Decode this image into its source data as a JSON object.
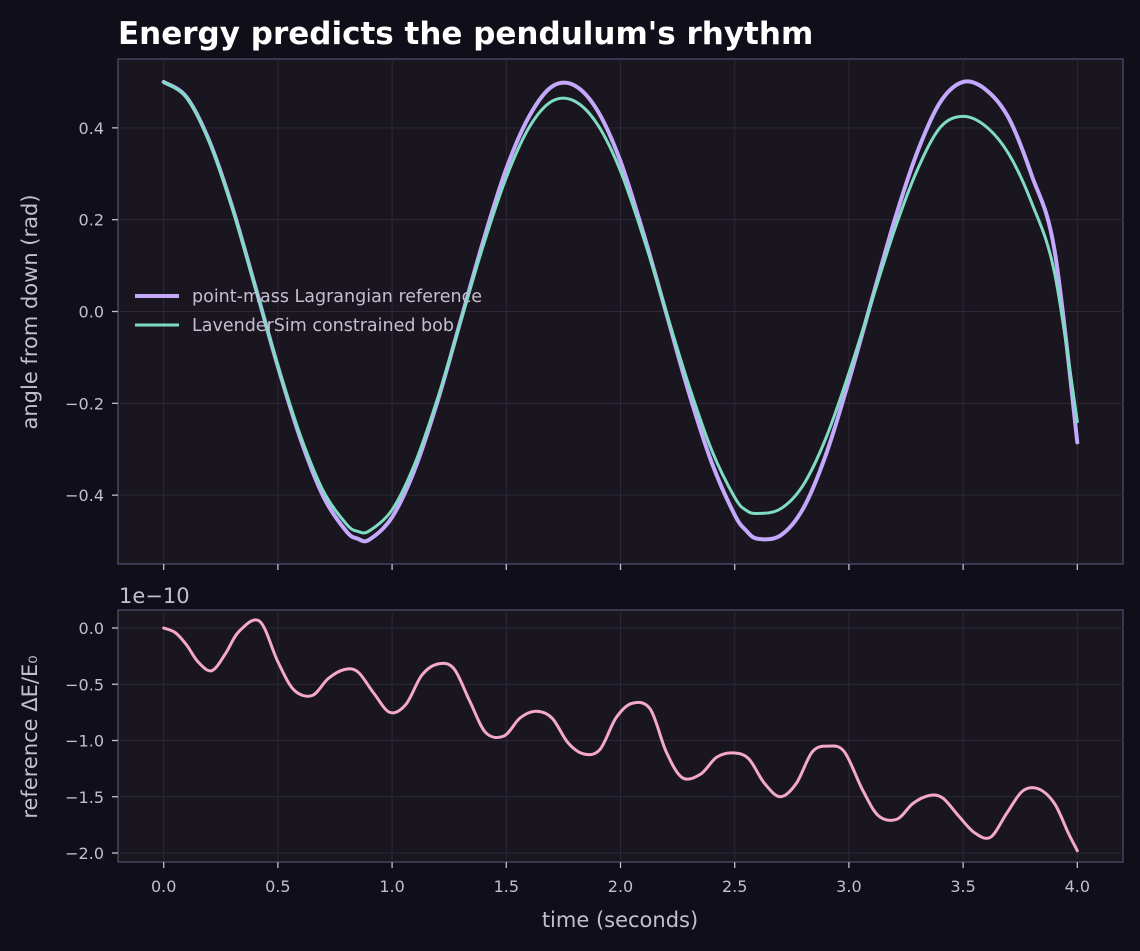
{
  "colors": {
    "background": "#100e19",
    "panel": "#19161f",
    "reference": "#c4a8fb",
    "sim": "#80dbc4",
    "energy": "#f3a8cc"
  },
  "chart_data": [
    {
      "type": "line",
      "title": "Energy predicts the pendulum's rhythm",
      "xlabel": "",
      "ylabel": "angle from down (rad)",
      "xlim": [
        -0.2,
        4.2
      ],
      "ylim": [
        -0.55,
        0.55
      ],
      "xticks": [
        0.0,
        0.5,
        1.0,
        1.5,
        2.0,
        2.5,
        3.0,
        3.5,
        4.0
      ],
      "yticks": [
        0.4,
        0.2,
        0.0,
        -0.2,
        -0.4
      ],
      "ytick_labels": [
        "0.4",
        "0.2",
        "0.0",
        "−0.2",
        "−0.4"
      ],
      "grid": true,
      "legend_position": "center-left",
      "series": [
        {
          "name": "point-mass Lagrangian reference",
          "color": "#c4a8fb",
          "x": [
            0.0,
            0.1,
            0.2,
            0.3,
            0.4,
            0.5,
            0.6,
            0.7,
            0.8,
            0.85,
            0.9,
            1.0,
            1.1,
            1.2,
            1.3,
            1.4,
            1.5,
            1.6,
            1.7,
            1.8,
            1.9,
            2.0,
            2.1,
            2.2,
            2.3,
            2.4,
            2.5,
            2.55,
            2.6,
            2.7,
            2.8,
            2.9,
            3.0,
            3.1,
            3.2,
            3.3,
            3.4,
            3.5,
            3.6,
            3.7,
            3.8,
            3.9,
            4.0
          ],
          "y": [
            0.5,
            0.467,
            0.371,
            0.228,
            0.056,
            -0.12,
            -0.279,
            -0.404,
            -0.479,
            -0.495,
            -0.497,
            -0.448,
            -0.343,
            -0.194,
            -0.02,
            0.155,
            0.311,
            0.425,
            0.49,
            0.492,
            0.437,
            0.327,
            0.171,
            -0.003,
            -0.178,
            -0.33,
            -0.443,
            -0.477,
            -0.495,
            -0.488,
            -0.429,
            -0.311,
            -0.151,
            0.025,
            0.199,
            0.348,
            0.456,
            0.5,
            0.483,
            0.421,
            0.297,
            0.134,
            -0.285
          ]
        },
        {
          "name": "LavenderSim constrained bob",
          "color": "#80dbc4",
          "x": [
            0.0,
            0.1,
            0.2,
            0.3,
            0.4,
            0.5,
            0.6,
            0.7,
            0.8,
            0.85,
            0.9,
            1.0,
            1.1,
            1.2,
            1.3,
            1.4,
            1.5,
            1.6,
            1.7,
            1.8,
            1.9,
            2.0,
            2.1,
            2.2,
            2.3,
            2.4,
            2.5,
            2.55,
            2.6,
            2.7,
            2.8,
            2.9,
            3.0,
            3.1,
            3.2,
            3.3,
            3.4,
            3.5,
            3.6,
            3.7,
            3.8,
            3.9,
            4.0
          ],
          "y": [
            0.5,
            0.466,
            0.369,
            0.225,
            0.055,
            -0.118,
            -0.272,
            -0.392,
            -0.463,
            -0.479,
            -0.478,
            -0.432,
            -0.331,
            -0.188,
            -0.022,
            0.145,
            0.292,
            0.401,
            0.458,
            0.458,
            0.407,
            0.306,
            0.162,
            -0.001,
            -0.162,
            -0.303,
            -0.405,
            -0.433,
            -0.44,
            -0.43,
            -0.378,
            -0.275,
            -0.134,
            0.022,
            0.178,
            0.309,
            0.401,
            0.425,
            0.403,
            0.343,
            0.237,
            0.085,
            -0.24
          ]
        }
      ]
    },
    {
      "type": "line",
      "title": "",
      "offset_label": "1e−10",
      "xlabel": "time (seconds)",
      "ylabel": "reference ΔE/E₀",
      "xlim": [
        -0.2,
        4.2
      ],
      "ylim": [
        -2.08,
        0.16
      ],
      "xticks": [
        0.0,
        0.5,
        1.0,
        1.5,
        2.0,
        2.5,
        3.0,
        3.5,
        4.0
      ],
      "xtick_labels": [
        "0.0",
        "0.5",
        "1.0",
        "1.5",
        "2.0",
        "2.5",
        "3.0",
        "3.5",
        "4.0"
      ],
      "yticks": [
        0.0,
        -0.5,
        -1.0,
        -1.5,
        -2.0
      ],
      "ytick_labels": [
        "0.0",
        "−0.5",
        "−1.0",
        "−1.5",
        "−2.0"
      ],
      "grid": true,
      "series": [
        {
          "color": "#f3a8cc",
          "x": [
            0.0,
            0.05,
            0.1,
            0.15,
            0.21,
            0.27,
            0.33,
            0.42,
            0.5,
            0.57,
            0.65,
            0.72,
            0.79,
            0.85,
            0.92,
            0.99,
            1.06,
            1.13,
            1.2,
            1.27,
            1.34,
            1.41,
            1.49,
            1.56,
            1.63,
            1.7,
            1.77,
            1.84,
            1.91,
            1.98,
            2.05,
            2.13,
            2.2,
            2.27,
            2.35,
            2.42,
            2.49,
            2.56,
            2.63,
            2.7,
            2.77,
            2.84,
            2.91,
            2.98,
            3.06,
            3.13,
            3.21,
            3.28,
            3.35,
            3.41,
            3.48,
            3.55,
            3.62,
            3.69,
            3.76,
            3.83,
            3.9,
            3.96,
            4.0
          ],
          "y": [
            0.0,
            -0.04,
            -0.15,
            -0.3,
            -0.38,
            -0.23,
            -0.03,
            0.06,
            -0.3,
            -0.55,
            -0.6,
            -0.45,
            -0.37,
            -0.39,
            -0.58,
            -0.75,
            -0.68,
            -0.42,
            -0.32,
            -0.36,
            -0.65,
            -0.93,
            -0.96,
            -0.8,
            -0.74,
            -0.8,
            -1.02,
            -1.12,
            -1.08,
            -0.8,
            -0.67,
            -0.72,
            -1.1,
            -1.33,
            -1.3,
            -1.15,
            -1.11,
            -1.16,
            -1.38,
            -1.5,
            -1.38,
            -1.1,
            -1.05,
            -1.1,
            -1.44,
            -1.67,
            -1.7,
            -1.56,
            -1.49,
            -1.51,
            -1.67,
            -1.82,
            -1.86,
            -1.65,
            -1.45,
            -1.43,
            -1.56,
            -1.82,
            -1.98
          ]
        }
      ]
    }
  ]
}
